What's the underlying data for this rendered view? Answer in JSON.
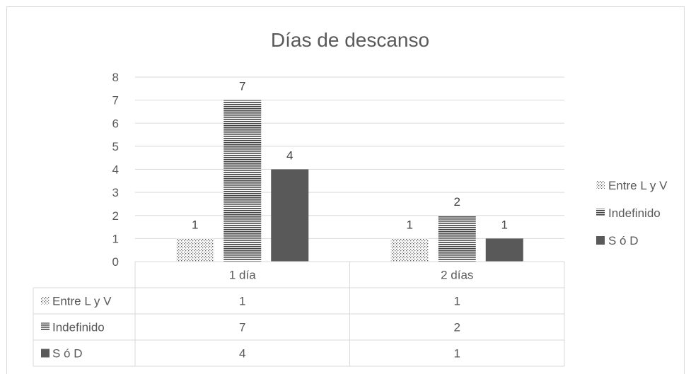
{
  "chart_data": {
    "type": "bar",
    "title": "Días de descanso",
    "categories": [
      "1 día",
      "2 días"
    ],
    "series": [
      {
        "name": "Entre L y V",
        "values": [
          1,
          1
        ],
        "pattern": "dots",
        "color": "#595959"
      },
      {
        "name": "Indefinido",
        "values": [
          7,
          2
        ],
        "pattern": "hlines",
        "color": "#404040"
      },
      {
        "name": "S ó D",
        "values": [
          4,
          1
        ],
        "pattern": "solid",
        "color": "#595959"
      }
    ],
    "ylim": [
      0,
      8
    ],
    "yticks": [
      "0",
      "1",
      "2",
      "3",
      "4",
      "5",
      "6",
      "7",
      "8"
    ],
    "grid": true,
    "legend_position": "right",
    "data_table": true
  }
}
